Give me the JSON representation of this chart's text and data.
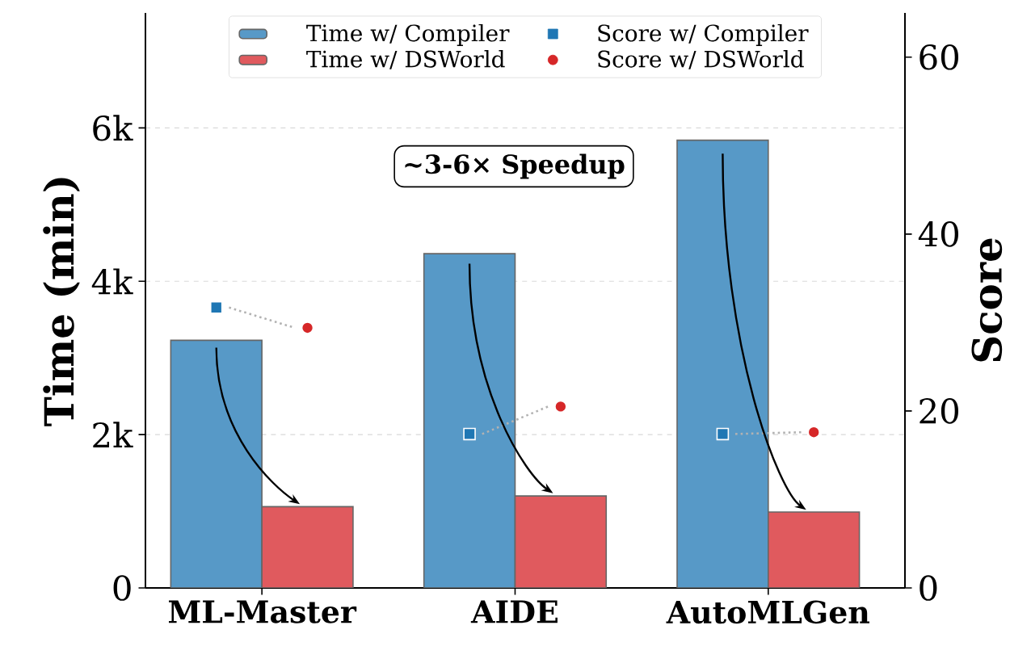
{
  "chart_data": {
    "type": "bar",
    "categories": [
      "ML-Master",
      "AIDE",
      "AutoMLGen"
    ],
    "series": [
      {
        "name": "Time w/ Compiler",
        "color": "#5799c7",
        "values": [
          3230,
          4360,
          5840
        ]
      },
      {
        "name": "Time w/ DSWorld",
        "color": "#e05a5e",
        "values": [
          1060,
          1200,
          990
        ]
      },
      {
        "name": "Score w/ Compiler",
        "type": "scatter",
        "axis": "y2",
        "marker": "square",
        "color": "#1f77b4",
        "values": [
          31.7,
          17.4,
          17.4
        ]
      },
      {
        "name": "Score w/ DSWorld",
        "type": "scatter",
        "axis": "y2",
        "marker": "circle",
        "color": "#d62728",
        "values": [
          29.4,
          20.5,
          17.6
        ]
      }
    ],
    "ylabel": "Time (min)",
    "y2label": "Score",
    "ylim": [
      0,
      7500
    ],
    "yticks": [
      0,
      {
        "value": 2000,
        "label": "2k"
      },
      {
        "value": 4000,
        "label": "4k"
      },
      {
        "value": 6000,
        "label": "6k"
      }
    ],
    "y2lim": [
      0,
      65
    ],
    "y2ticks": [
      0,
      20,
      40,
      60
    ],
    "annotations": [
      "~3-6× Speedup"
    ],
    "grid": "y",
    "legend": "top"
  }
}
